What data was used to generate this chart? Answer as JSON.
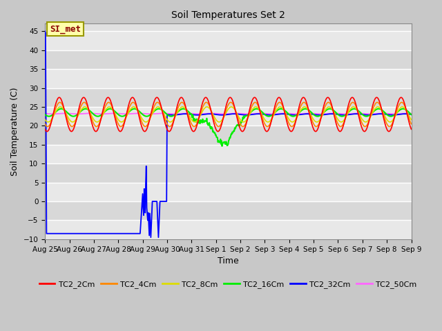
{
  "title": "Soil Temperatures Set 2",
  "xlabel": "Time",
  "ylabel": "Soil Temperature (C)",
  "ylim": [
    -10,
    47
  ],
  "yticks": [
    -10,
    -5,
    0,
    5,
    10,
    15,
    20,
    25,
    30,
    35,
    40,
    45
  ],
  "fig_bg_color": "#c8c8c8",
  "plot_bg_color": "#e0e0e0",
  "grid_color": "#ffffff",
  "series_colors": {
    "TC2_2Cm": "#ff0000",
    "TC2_4Cm": "#ff8800",
    "TC2_8Cm": "#dddd00",
    "TC2_16Cm": "#00ee00",
    "TC2_32Cm": "#0000ff",
    "TC2_50Cm": "#ff66ff"
  },
  "tick_labels": [
    "Aug 25",
    "Aug 26",
    "Aug 27",
    "Aug 28",
    "Aug 29",
    "Aug 30",
    "Aug 31",
    "Sep 1",
    "Sep 2",
    "Sep 3",
    "Sep 4",
    "Sep 5",
    "Sep 6",
    "Sep 7",
    "Sep 8",
    "Sep 9"
  ],
  "annotation_text": "SI_met",
  "annotation_color": "#8B0000",
  "annotation_bg": "#ffffaa",
  "annotation_edge": "#999900"
}
